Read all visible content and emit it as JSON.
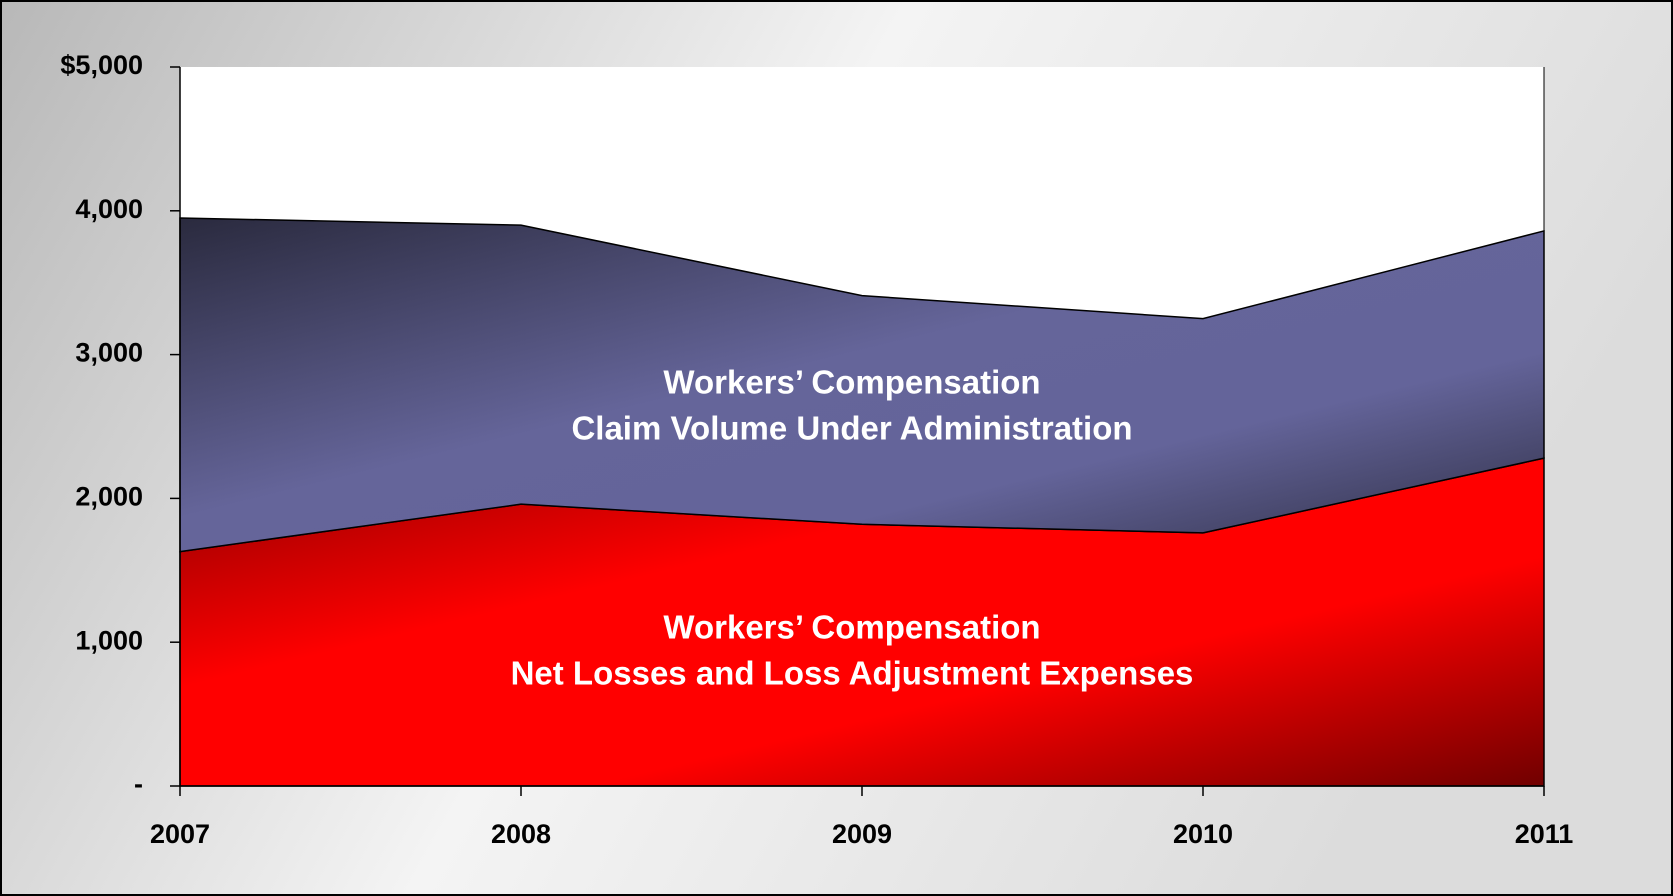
{
  "chart_data": {
    "type": "stacked_area",
    "categories": [
      "2007",
      "2008",
      "2009",
      "2010",
      "2011"
    ],
    "series": [
      {
        "color": "#ff0000",
        "values": [
          1630,
          1960,
          1820,
          1760,
          2280
        ]
      },
      {
        "color": "#65659a",
        "values": [
          2320,
          1940,
          1590,
          1490,
          1580
        ]
      }
    ],
    "annotations": [
      {
        "lines": [
          "Workers’ Compensation",
          "Claim Volume Under Administration"
        ]
      },
      {
        "lines": [
          "Workers’ Compensation",
          "Net Losses and Loss Adjustment Expenses"
        ]
      }
    ],
    "ylim": [
      0,
      5000
    ],
    "yticks": [
      {
        "value": 0,
        "label": "-"
      },
      {
        "value": 1000,
        "label": "1,000"
      },
      {
        "value": 2000,
        "label": "2,000"
      },
      {
        "value": 3000,
        "label": "3,000"
      },
      {
        "value": 4000,
        "label": "4,000"
      },
      {
        "value": 5000,
        "label": "$5,000"
      }
    ]
  }
}
